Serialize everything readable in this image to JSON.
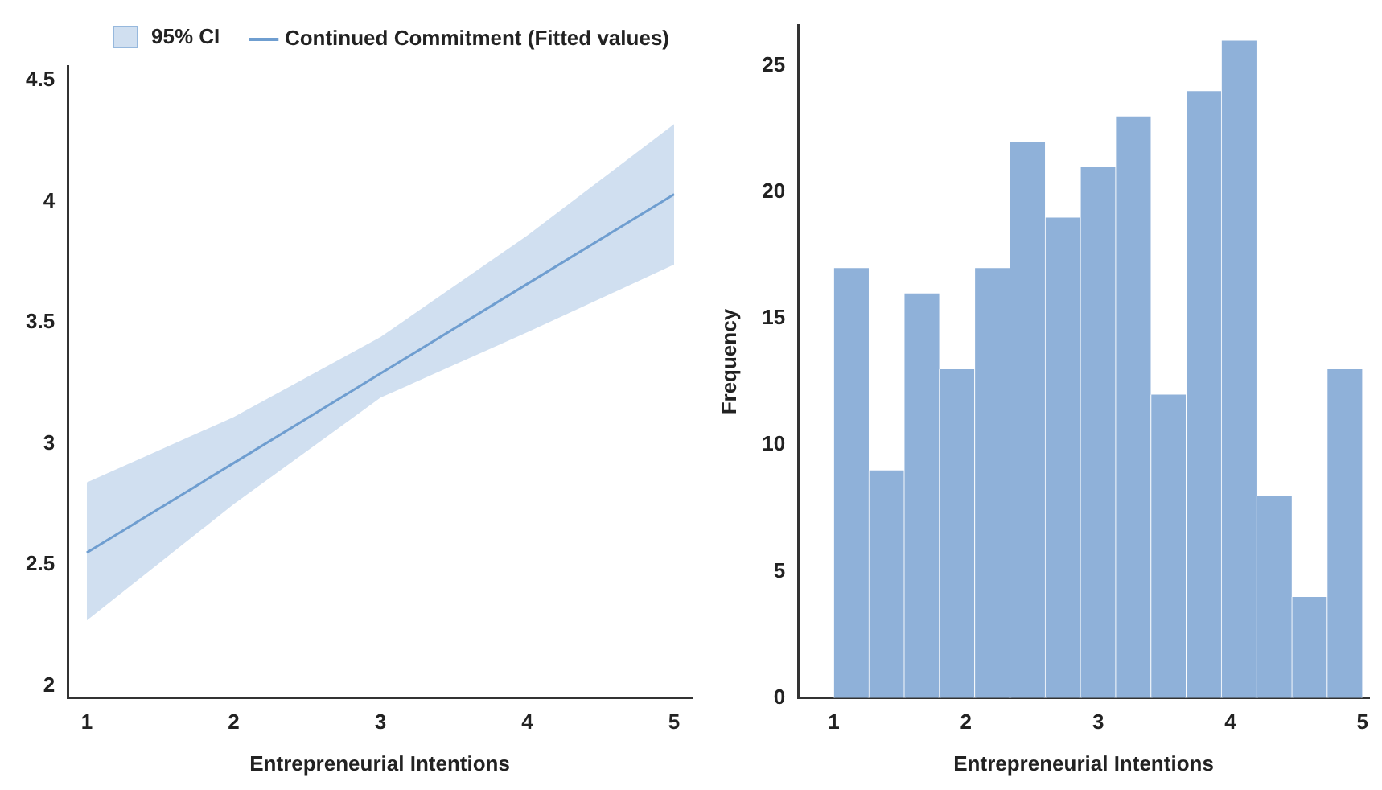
{
  "chart_data": [
    {
      "type": "line",
      "xlabel": "Entrepreneurial Intentions",
      "xlim": [
        0.87,
        5.12
      ],
      "xticks": [
        1,
        2,
        3,
        4,
        5
      ],
      "ylim": [
        1.95,
        4.56
      ],
      "yticks": [
        2,
        2.5,
        3,
        3.5,
        4,
        4.5
      ],
      "grid": false,
      "legend": "top",
      "marker": "none",
      "annotations": [
        "95% CI"
      ],
      "series": [
        {
          "name": "Continued Commitment (Fitted values)",
          "color": "#6f9ed0",
          "x": [
            1,
            2,
            3,
            4,
            5
          ],
          "values": [
            2.55,
            2.92,
            3.29,
            3.66,
            4.03
          ],
          "lower": [
            2.27,
            2.75,
            3.19,
            3.46,
            3.74
          ],
          "upper": [
            2.84,
            3.11,
            3.44,
            3.86,
            4.32
          ]
        }
      ]
    },
    {
      "type": "histogram",
      "xlabel": "Entrepreneurial Intentions",
      "ylabel": "Frequency",
      "xlim": [
        0.73,
        5.05
      ],
      "xticks": [
        1,
        2,
        3,
        4,
        5
      ],
      "ylim": [
        0,
        26.6
      ],
      "yticks": [
        0,
        5,
        10,
        15,
        20,
        25
      ],
      "grid": false,
      "legend": false,
      "color": "#8fb1d9",
      "bins": [
        1,
        1.267,
        1.533,
        1.8,
        2.067,
        2.333,
        2.6,
        2.867,
        3.133,
        3.4,
        3.667,
        3.933,
        4.2,
        4.467,
        4.733,
        5
      ],
      "values": [
        17,
        9,
        16,
        13,
        17,
        22,
        19,
        21,
        23,
        12,
        24,
        26,
        8,
        4,
        13
      ]
    }
  ]
}
